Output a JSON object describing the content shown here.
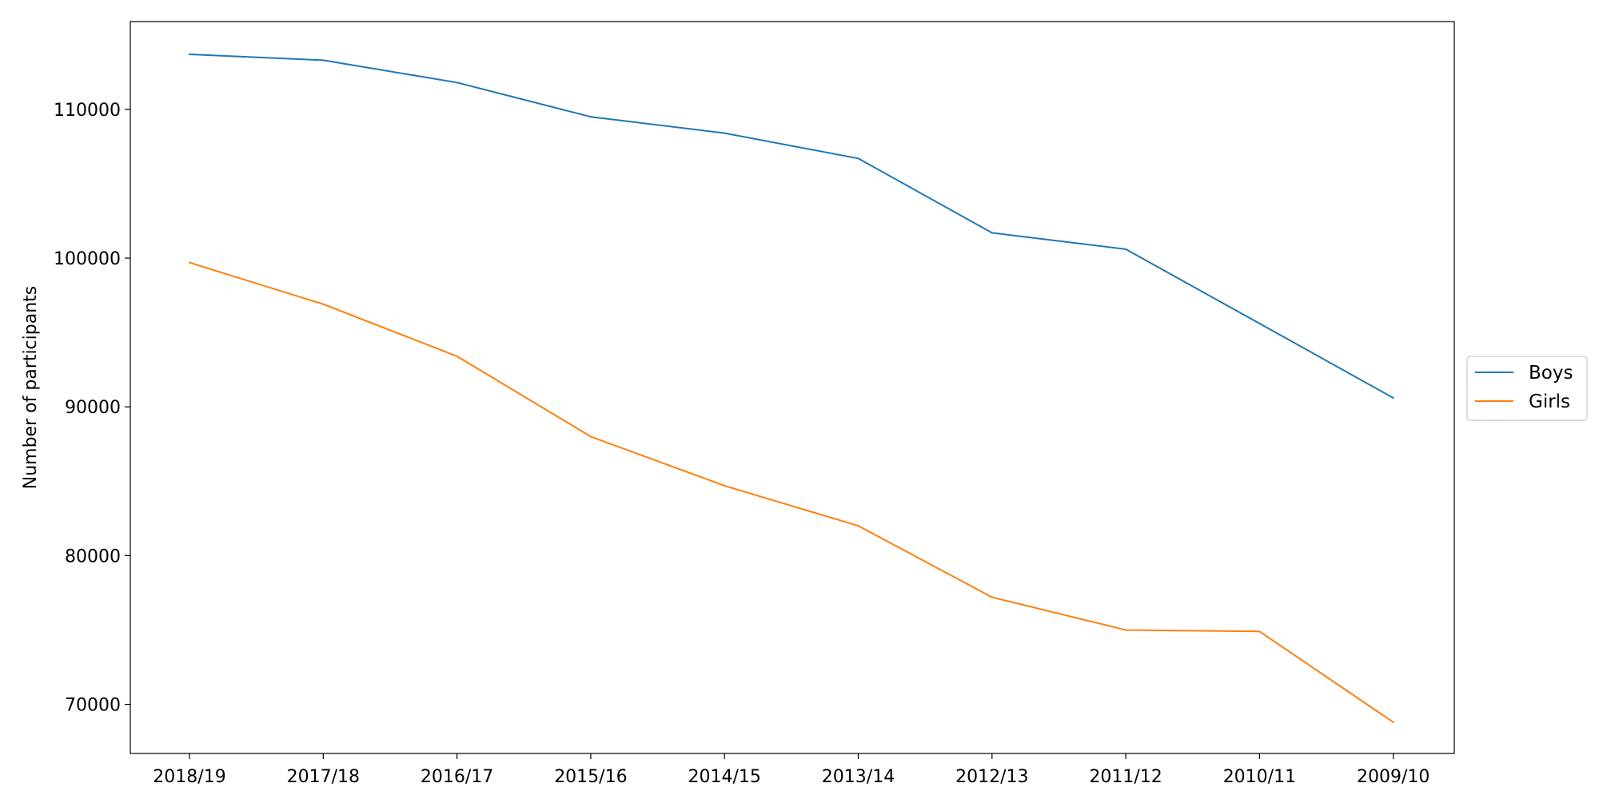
{
  "chart_data": {
    "type": "line",
    "title": "",
    "xlabel": "",
    "ylabel": "Number of participants",
    "categories": [
      "2018/19",
      "2017/18",
      "2016/17",
      "2015/16",
      "2014/15",
      "2013/14",
      "2012/13",
      "2011/12",
      "2010/11",
      "2009/10"
    ],
    "series": [
      {
        "name": "Boys",
        "color": "#1f77b4",
        "values": [
          113700,
          113300,
          111800,
          109500,
          108400,
          106700,
          101700,
          100600,
          95600,
          90600
        ]
      },
      {
        "name": "Girls",
        "color": "#ff7f0e",
        "values": [
          99700,
          96900,
          93400,
          88000,
          84700,
          82000,
          77200,
          75000,
          74900,
          68800
        ]
      }
    ],
    "ylim": [
      66700,
      115900
    ],
    "yticks": [
      70000,
      80000,
      90000,
      100000,
      110000
    ],
    "ytick_labels": [
      "70000",
      "80000",
      "90000",
      "100000",
      "110000"
    ],
    "grid": false,
    "legend_position": "right, outside"
  }
}
